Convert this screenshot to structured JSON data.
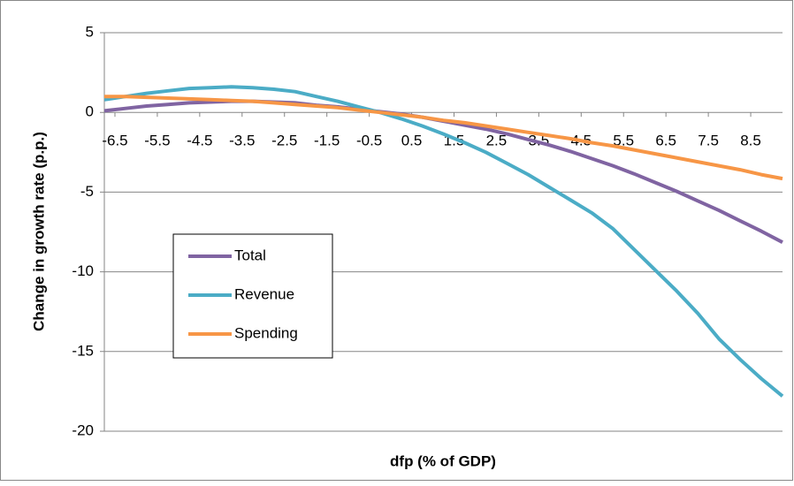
{
  "chart_data": {
    "type": "line",
    "y_label": "Change in growth rate (p.p.)",
    "x_label": "dfp (% of GDP)",
    "x": [
      -6.75,
      -6.25,
      -5.75,
      -5.25,
      -4.75,
      -4.25,
      -3.75,
      -3.25,
      -2.75,
      -2.25,
      -1.75,
      -1.25,
      -0.75,
      -0.25,
      0.25,
      0.75,
      1.25,
      1.75,
      2.25,
      2.75,
      3.25,
      3.75,
      4.25,
      4.75,
      5.25,
      5.75,
      6.25,
      6.75,
      7.25,
      7.75,
      8.25,
      8.75,
      9.25
    ],
    "series": [
      {
        "name": "Total",
        "color": "#8064a2",
        "values": [
          0.1,
          0.25,
          0.4,
          0.5,
          0.6,
          0.65,
          0.7,
          0.7,
          0.65,
          0.6,
          0.45,
          0.35,
          0.2,
          0.05,
          -0.1,
          -0.3,
          -0.55,
          -0.8,
          -1.05,
          -1.35,
          -1.7,
          -2.05,
          -2.45,
          -2.9,
          -3.35,
          -3.85,
          -4.4,
          -4.95,
          -5.55,
          -6.15,
          -6.8,
          -7.45,
          -8.15
        ]
      },
      {
        "name": "Revenue",
        "color": "#4bacc6",
        "values": [
          0.8,
          1.0,
          1.2,
          1.35,
          1.5,
          1.55,
          1.6,
          1.55,
          1.45,
          1.3,
          1.0,
          0.7,
          0.35,
          0.0,
          -0.4,
          -0.85,
          -1.35,
          -1.9,
          -2.5,
          -3.2,
          -3.9,
          -4.7,
          -5.5,
          -6.3,
          -7.3,
          -8.6,
          -9.9,
          -11.2,
          -12.6,
          -14.2,
          -15.5,
          -16.7,
          -17.8
        ]
      },
      {
        "name": "Spending",
        "color": "#f79646",
        "values": [
          1.0,
          1.0,
          0.95,
          0.9,
          0.85,
          0.8,
          0.75,
          0.7,
          0.6,
          0.5,
          0.4,
          0.3,
          0.15,
          0.0,
          -0.15,
          -0.3,
          -0.5,
          -0.65,
          -0.85,
          -1.05,
          -1.25,
          -1.45,
          -1.65,
          -1.9,
          -2.1,
          -2.35,
          -2.6,
          -2.85,
          -3.1,
          -3.35,
          -3.6,
          -3.9,
          -4.15
        ]
      }
    ],
    "xlim": [
      -6.75,
      9.25
    ],
    "xticks": [
      -6.5,
      -5.5,
      -4.5,
      -3.5,
      -2.5,
      -1.5,
      -0.5,
      0.5,
      1.5,
      2.5,
      3.5,
      4.5,
      5.5,
      6.5,
      7.5,
      8.5
    ],
    "ylim": [
      -20,
      5
    ],
    "yticks": [
      -20,
      -15,
      -10,
      -5,
      0,
      5
    ],
    "grid": true,
    "legend": "lower left"
  }
}
